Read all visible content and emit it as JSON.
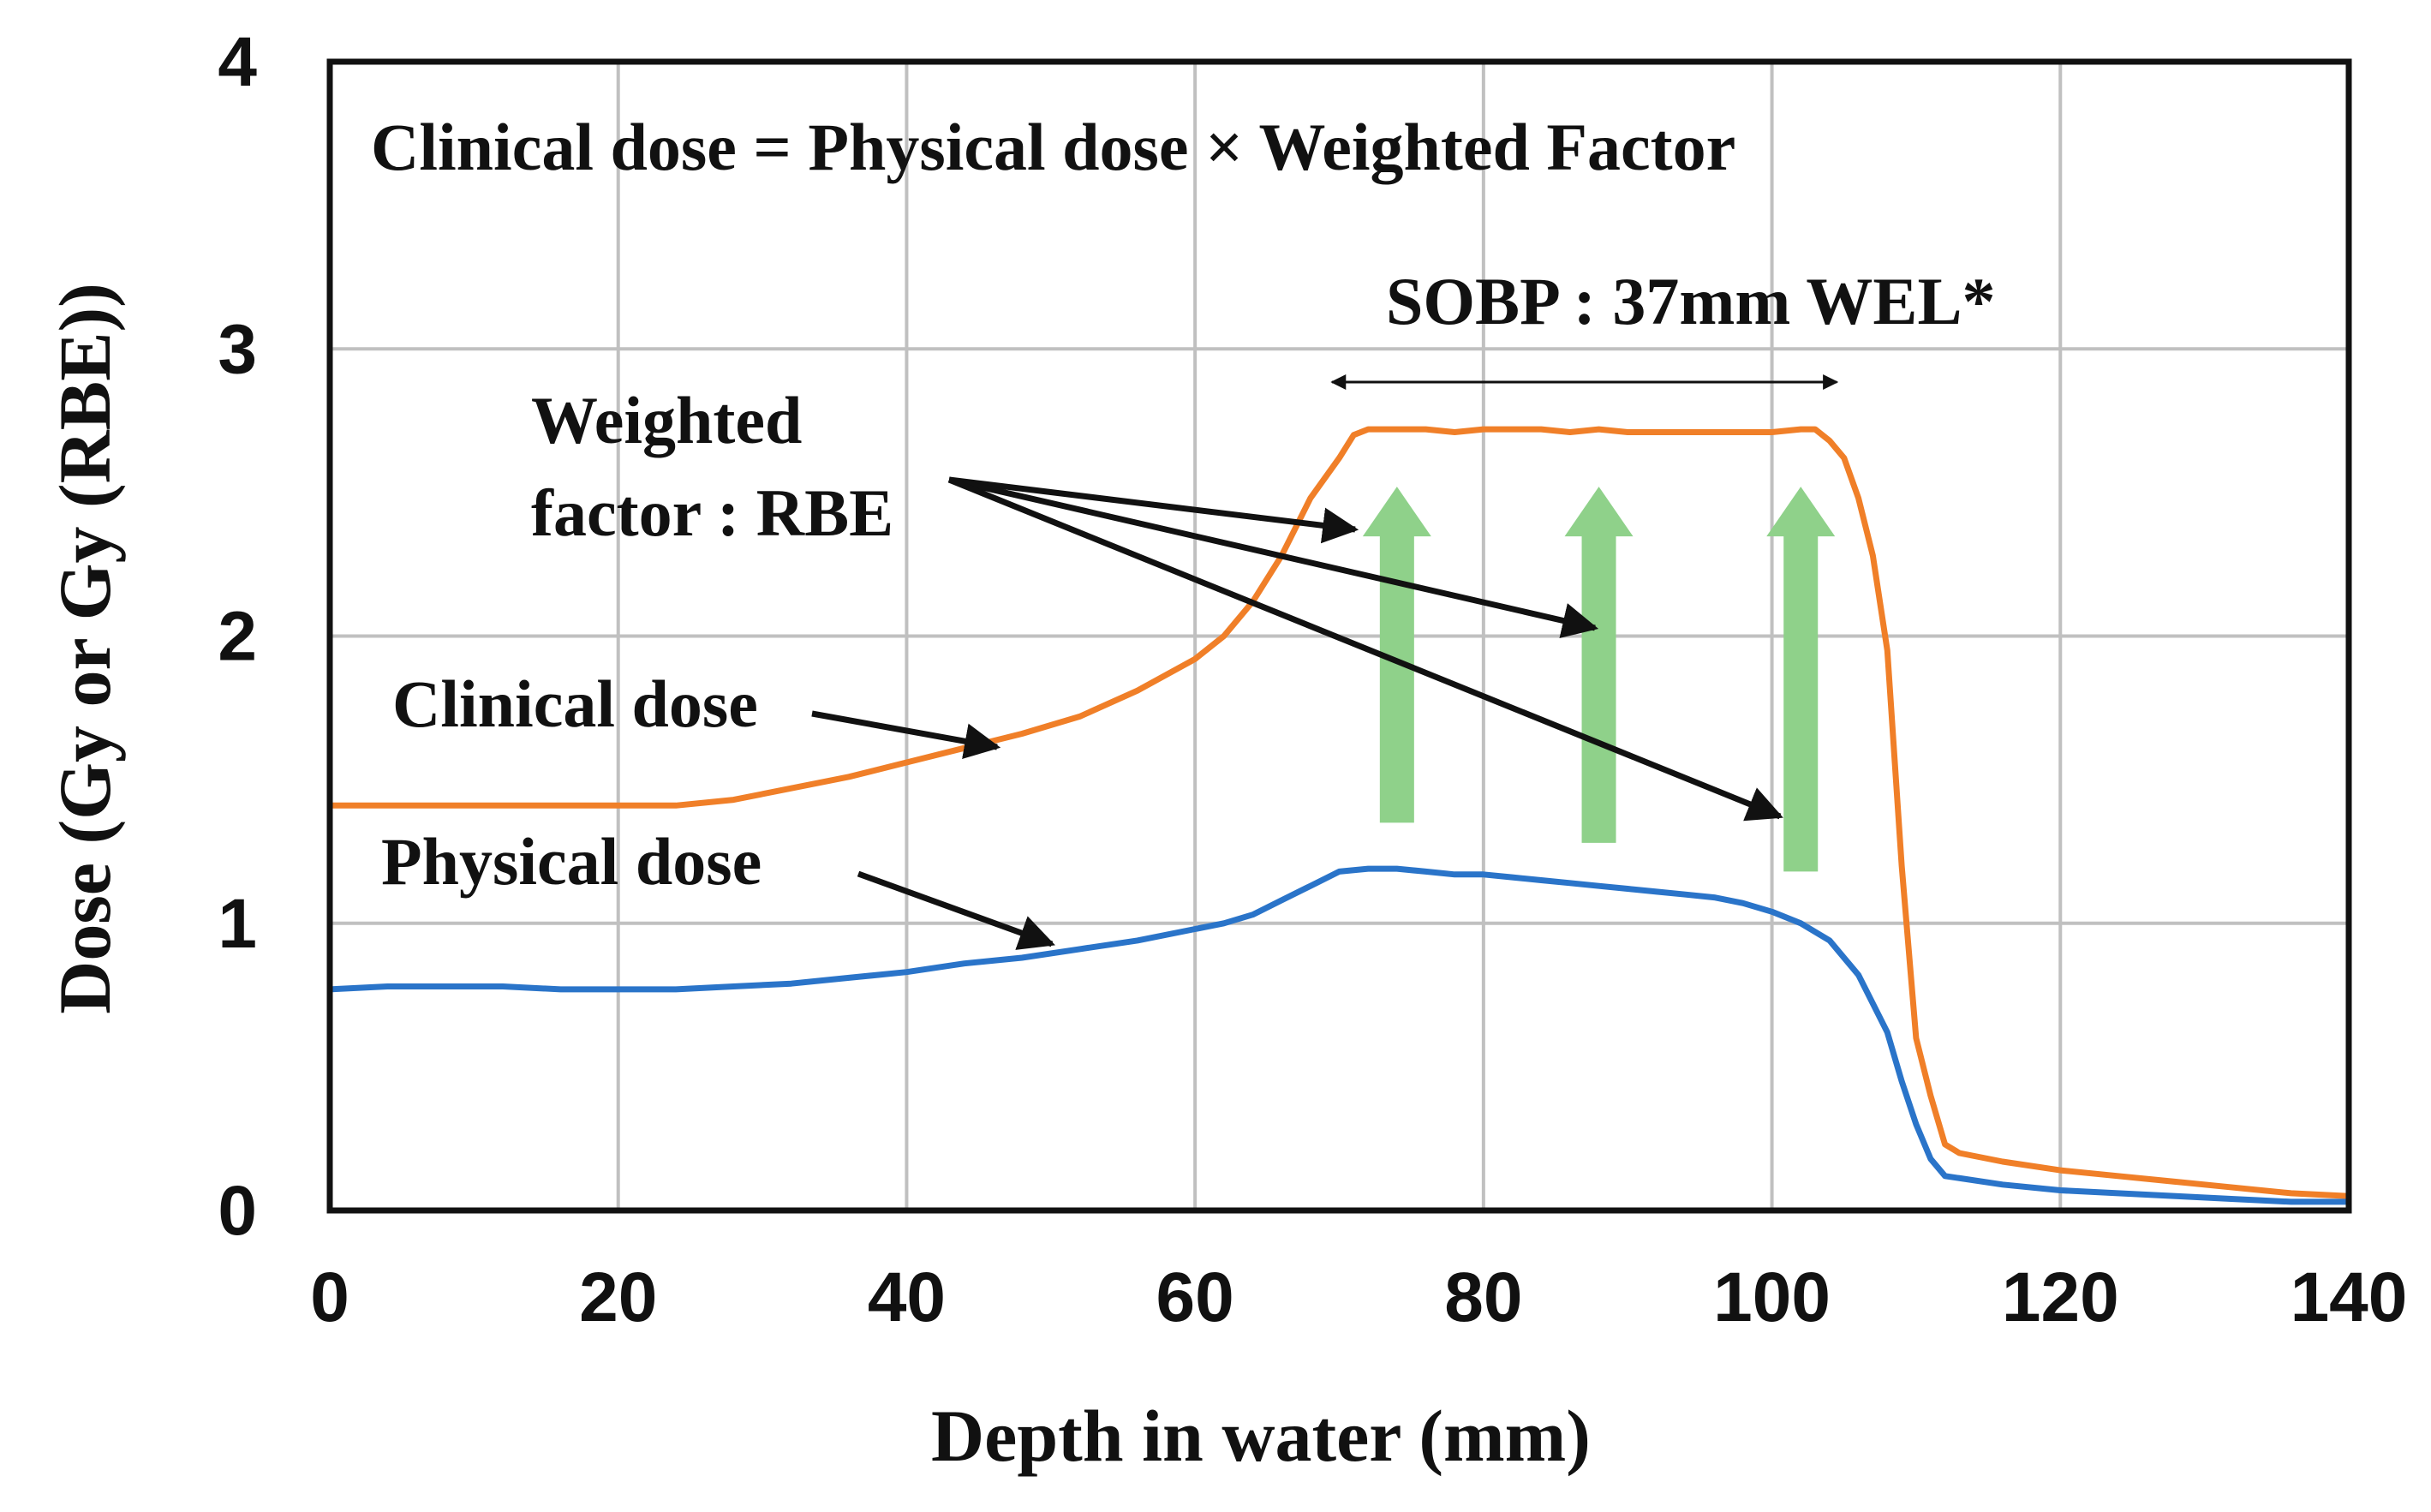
{
  "chart_data": {
    "type": "line",
    "title": "",
    "xlabel": "Depth in water (mm)",
    "ylabel": "Dose (Gy or Gy (RBE))",
    "xlim": [
      0,
      140
    ],
    "ylim": [
      0,
      4
    ],
    "xticks": [
      0,
      20,
      40,
      60,
      80,
      100,
      120,
      140
    ],
    "yticks": [
      0,
      1,
      2,
      3,
      4
    ],
    "grid": true,
    "series": [
      {
        "name": "Clinical dose",
        "color": "#f07f28",
        "x": [
          0,
          4,
          8,
          12,
          16,
          20,
          24,
          28,
          32,
          36,
          40,
          44,
          48,
          52,
          56,
          60,
          62,
          64,
          66,
          68,
          70,
          71,
          72,
          74,
          76,
          78,
          80,
          82,
          84,
          86,
          88,
          90,
          92,
          94,
          96,
          98,
          100,
          102,
          103,
          104,
          105,
          106,
          107,
          108,
          109,
          110,
          111,
          112,
          113,
          116,
          120,
          124,
          128,
          132,
          136,
          140
        ],
        "values": [
          1.41,
          1.41,
          1.41,
          1.41,
          1.41,
          1.41,
          1.41,
          1.43,
          1.47,
          1.51,
          1.56,
          1.61,
          1.66,
          1.72,
          1.81,
          1.92,
          2.0,
          2.12,
          2.28,
          2.48,
          2.62,
          2.7,
          2.72,
          2.72,
          2.72,
          2.71,
          2.72,
          2.72,
          2.72,
          2.71,
          2.72,
          2.71,
          2.71,
          2.71,
          2.71,
          2.71,
          2.71,
          2.72,
          2.72,
          2.68,
          2.62,
          2.48,
          2.28,
          1.95,
          1.2,
          0.6,
          0.4,
          0.23,
          0.2,
          0.17,
          0.14,
          0.12,
          0.1,
          0.08,
          0.06,
          0.05
        ]
      },
      {
        "name": "Physical dose",
        "color": "#2a74c9",
        "x": [
          0,
          4,
          8,
          12,
          16,
          20,
          24,
          28,
          32,
          36,
          40,
          44,
          48,
          52,
          56,
          60,
          62,
          64,
          66,
          68,
          70,
          72,
          74,
          76,
          78,
          80,
          82,
          84,
          86,
          88,
          90,
          92,
          94,
          96,
          98,
          100,
          102,
          104,
          106,
          108,
          109,
          110,
          111,
          112,
          116,
          120,
          124,
          128,
          132,
          136,
          140
        ],
        "values": [
          0.77,
          0.78,
          0.78,
          0.78,
          0.77,
          0.77,
          0.77,
          0.78,
          0.79,
          0.81,
          0.83,
          0.86,
          0.88,
          0.91,
          0.94,
          0.98,
          1.0,
          1.03,
          1.08,
          1.13,
          1.18,
          1.19,
          1.19,
          1.18,
          1.17,
          1.17,
          1.16,
          1.15,
          1.14,
          1.13,
          1.12,
          1.11,
          1.1,
          1.09,
          1.07,
          1.04,
          1.0,
          0.94,
          0.82,
          0.62,
          0.45,
          0.3,
          0.18,
          0.12,
          0.09,
          0.07,
          0.06,
          0.05,
          0.04,
          0.03,
          0.03
        ]
      }
    ],
    "annotations": {
      "formula": "Clinical dose = Physical dose × Weighted Factor",
      "sobp": "SOBP : 37mm WEL*",
      "sobp_range": [
        69.5,
        104.5
      ],
      "weighted_line1": "Weighted",
      "weighted_line2": "factor : RBE",
      "clinical_label": "Clinical dose",
      "physical_label": "Physical dose",
      "rbe_arrows": [
        {
          "x": 74,
          "from": 1.35,
          "to": 2.52
        },
        {
          "x": 88,
          "from": 1.28,
          "to": 2.52
        },
        {
          "x": 102,
          "from": 1.18,
          "to": 2.52
        }
      ],
      "rbe_arrow_color": "#8fd18a"
    }
  }
}
